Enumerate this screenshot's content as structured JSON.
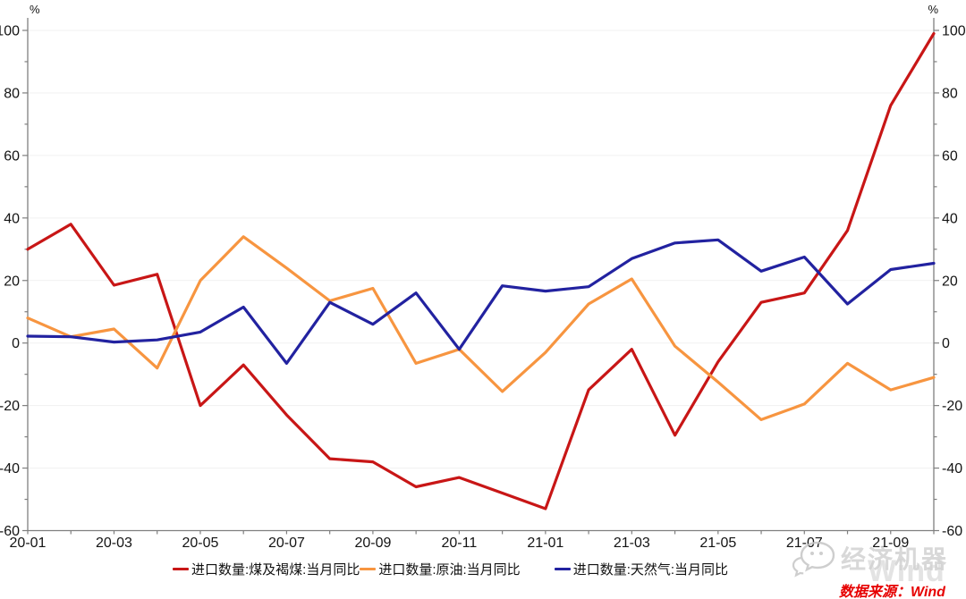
{
  "chart_data": {
    "type": "line",
    "title": "",
    "unit_left": "%",
    "unit_right": "%",
    "grid": "horizontal",
    "legend_position": "bottom",
    "ylim": [
      -60,
      104
    ],
    "yticks_major": [
      -60,
      -40,
      -20,
      0,
      20,
      40,
      60,
      80,
      100
    ],
    "ytick_minor_step": 10,
    "x_tick_label_every": 2,
    "categories": [
      "20-01",
      "20-02",
      "20-03",
      "20-04",
      "20-05",
      "20-06",
      "20-07",
      "20-08",
      "20-09",
      "20-10",
      "20-11",
      "20-12",
      "21-01",
      "21-02",
      "21-03",
      "21-04",
      "21-05",
      "21-06",
      "21-07",
      "21-08",
      "21-09",
      "21-10"
    ],
    "series": [
      {
        "name": "进口数量:煤及褐煤:当月同比",
        "color": "#c81616",
        "values": [
          30,
          38,
          18.5,
          22,
          -20,
          -7,
          -23,
          -37,
          -38,
          -46,
          -43,
          -48,
          -53,
          -15,
          -2,
          -29.5,
          -6,
          13,
          16,
          36,
          76,
          99
        ]
      },
      {
        "name": "进口数量:原油:当月同比",
        "color": "#f79540",
        "values": [
          8,
          2,
          4.5,
          -8,
          20,
          34,
          24,
          13.5,
          17.5,
          -6.5,
          -2,
          -15.5,
          -3,
          12.5,
          20.5,
          -1,
          -12.5,
          -24.5,
          -19.5,
          -6.5,
          -15,
          -11
        ]
      },
      {
        "name": "进口数量:天然气:当月同比",
        "color": "#2222a0",
        "values": [
          2.2,
          2,
          0.3,
          1,
          3.5,
          11.5,
          -6.5,
          13,
          6,
          16,
          -2,
          18.3,
          16.6,
          18,
          27,
          32,
          33,
          23,
          27.5,
          12.5,
          23.5,
          25.5
        ]
      }
    ]
  },
  "watermark": {
    "brand": "经济机器",
    "wind_text": "Wind",
    "source_label": "数据来源：Wind"
  }
}
